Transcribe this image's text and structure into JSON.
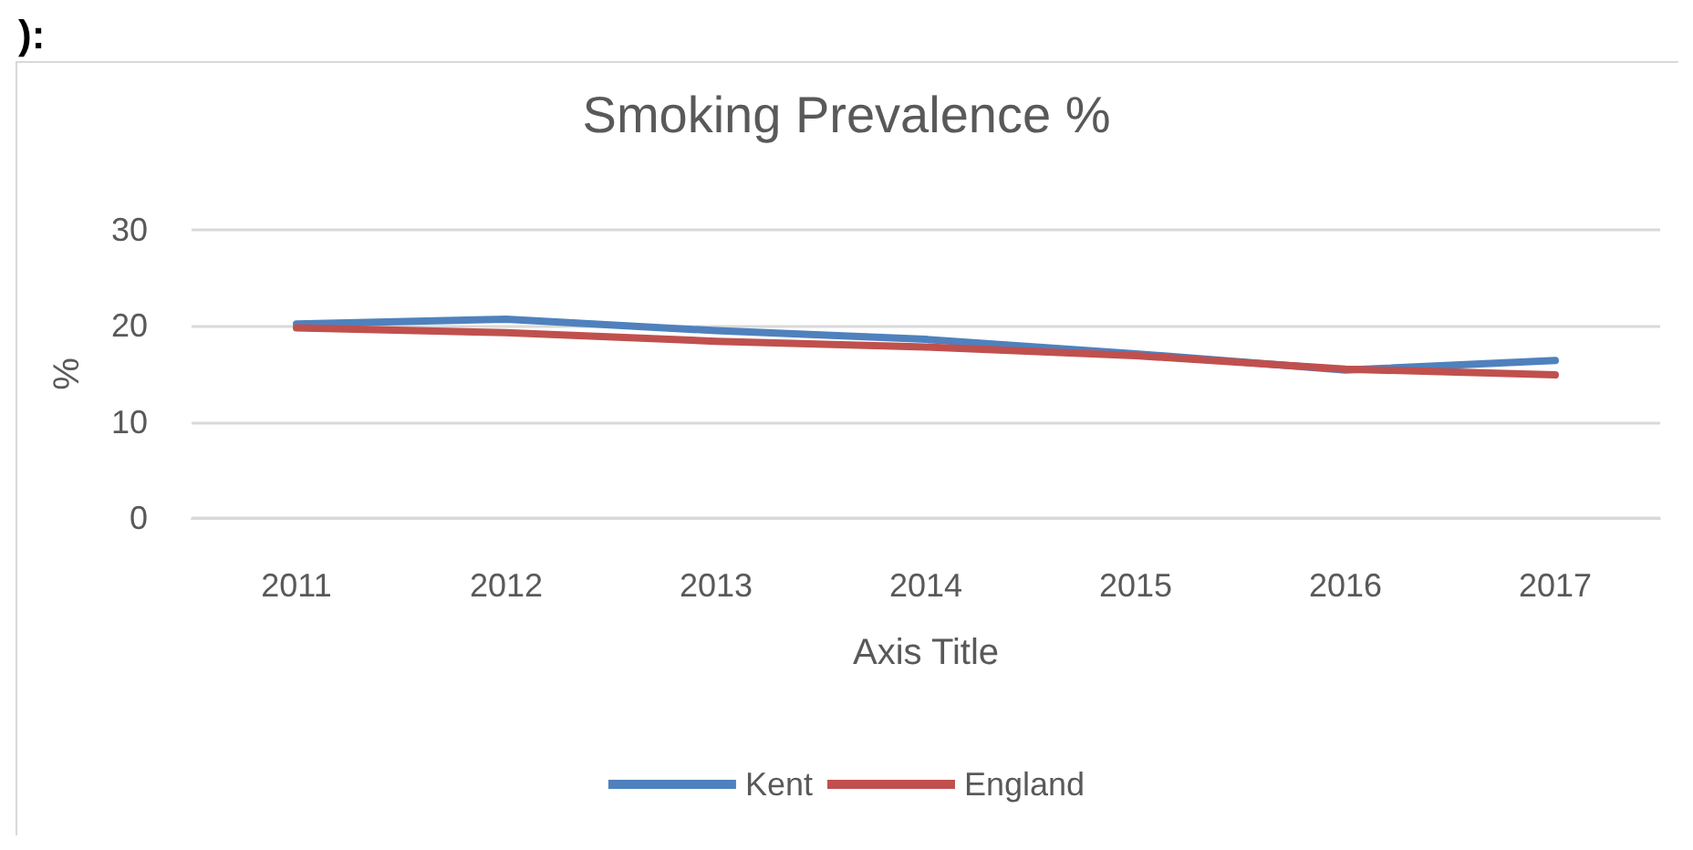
{
  "chart_data": {
    "type": "line",
    "title": "Smoking Prevalence %",
    "xlabel": "Axis Title",
    "ylabel": "%",
    "annotations": [
      "):"
    ],
    "categories": [
      "2011",
      "2012",
      "2013",
      "2014",
      "2015",
      "2016",
      "2017"
    ],
    "series": [
      {
        "name": "Kent",
        "color": "#4f81bd",
        "values": [
          20.2,
          20.7,
          19.5,
          18.6,
          17.1,
          15.4,
          16.4
        ]
      },
      {
        "name": "England",
        "color": "#c0504d",
        "values": [
          19.8,
          19.3,
          18.4,
          17.8,
          16.9,
          15.5,
          14.9
        ]
      }
    ],
    "ylim": [
      0,
      30
    ],
    "yticks": [
      0,
      10,
      20,
      30
    ],
    "grid": "y",
    "legend": "bottom",
    "marker": "none",
    "line_style": "solid"
  }
}
